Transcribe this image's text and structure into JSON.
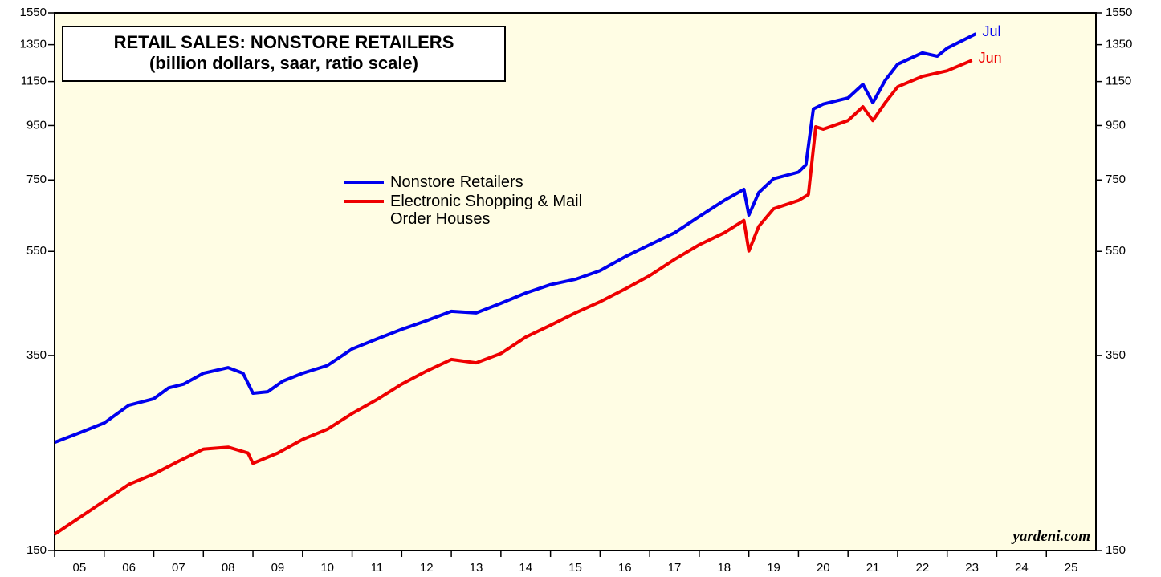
{
  "chart_data": {
    "type": "line",
    "title": "RETAIL SALES: NONSTORE RETAILERS",
    "subtitle": "(billion dollars, saar, ratio scale)",
    "source": "yardeni.com",
    "log_scale": true,
    "background": "#fffde4",
    "xlim": [
      2005,
      2026
    ],
    "xticks": [
      {
        "value": 2005,
        "label": "05"
      },
      {
        "value": 2006,
        "label": "06"
      },
      {
        "value": 2007,
        "label": "07"
      },
      {
        "value": 2008,
        "label": "08"
      },
      {
        "value": 2009,
        "label": "09"
      },
      {
        "value": 2010,
        "label": "10"
      },
      {
        "value": 2011,
        "label": "11"
      },
      {
        "value": 2012,
        "label": "12"
      },
      {
        "value": 2013,
        "label": "13"
      },
      {
        "value": 2014,
        "label": "14"
      },
      {
        "value": 2015,
        "label": "15"
      },
      {
        "value": 2016,
        "label": "16"
      },
      {
        "value": 2017,
        "label": "17"
      },
      {
        "value": 2018,
        "label": "18"
      },
      {
        "value": 2019,
        "label": "19"
      },
      {
        "value": 2020,
        "label": "20"
      },
      {
        "value": 2021,
        "label": "21"
      },
      {
        "value": 2022,
        "label": "22"
      },
      {
        "value": 2023,
        "label": "23"
      },
      {
        "value": 2024,
        "label": "24"
      },
      {
        "value": 2025,
        "label": "25"
      }
    ],
    "ylim": [
      150,
      1550
    ],
    "yticks": [
      150,
      350,
      550,
      750,
      950,
      1150,
      1350,
      1550
    ],
    "series": [
      {
        "name": "Nonstore Retailers",
        "color": "#0000ee",
        "end_label": "Jul",
        "x": [
          2005.0,
          2005.5,
          2006.0,
          2006.5,
          2007.0,
          2007.3,
          2007.6,
          2008.0,
          2008.5,
          2008.8,
          2009.0,
          2009.3,
          2009.6,
          2010.0,
          2010.5,
          2011.0,
          2011.5,
          2012.0,
          2012.5,
          2013.0,
          2013.5,
          2014.0,
          2014.5,
          2015.0,
          2015.5,
          2016.0,
          2016.5,
          2017.0,
          2017.5,
          2018.0,
          2018.5,
          2018.9,
          2019.0,
          2019.2,
          2019.5,
          2020.0,
          2020.15,
          2020.3,
          2020.5,
          2021.0,
          2021.3,
          2021.5,
          2021.75,
          2022.0,
          2022.5,
          2022.8,
          2023.0,
          2023.58
        ],
        "values": [
          240,
          250,
          261,
          282,
          290,
          304,
          309,
          324,
          332,
          324,
          297,
          299,
          313,
          324,
          335,
          360,
          376,
          392,
          407,
          424,
          421,
          439,
          459,
          476,
          487,
          506,
          537,
          566,
          596,
          640,
          686,
          720,
          644,
          710,
          754,
          776,
          801,
          1021,
          1043,
          1071,
          1136,
          1049,
          1156,
          1240,
          1303,
          1284,
          1330,
          1415
        ]
      },
      {
        "name": "Electronic Shopping & Mail Order Houses",
        "color": "#ee0000",
        "end_label": "Jun",
        "x": [
          2005.0,
          2005.5,
          2006.0,
          2006.5,
          2007.0,
          2007.5,
          2008.0,
          2008.5,
          2008.9,
          2009.0,
          2009.5,
          2010.0,
          2010.5,
          2011.0,
          2011.5,
          2012.0,
          2012.5,
          2013.0,
          2013.5,
          2014.0,
          2014.5,
          2015.0,
          2015.5,
          2016.0,
          2016.5,
          2017.0,
          2017.5,
          2018.0,
          2018.5,
          2018.9,
          2019.0,
          2019.2,
          2019.5,
          2020.0,
          2020.2,
          2020.35,
          2020.5,
          2021.0,
          2021.3,
          2021.5,
          2021.75,
          2022.0,
          2022.5,
          2023.0,
          2023.5
        ],
        "values": [
          161,
          173,
          186,
          200,
          209,
          221,
          233,
          235,
          229,
          219,
          229,
          243,
          254,
          272,
          289,
          309,
          327,
          344,
          339,
          353,
          379,
          399,
          421,
          442,
          467,
          495,
          531,
          566,
          596,
          629,
          551,
          613,
          662,
          686,
          704,
          945,
          935,
          971,
          1031,
          971,
          1049,
          1124,
          1176,
          1205,
          1261
        ]
      }
    ]
  }
}
